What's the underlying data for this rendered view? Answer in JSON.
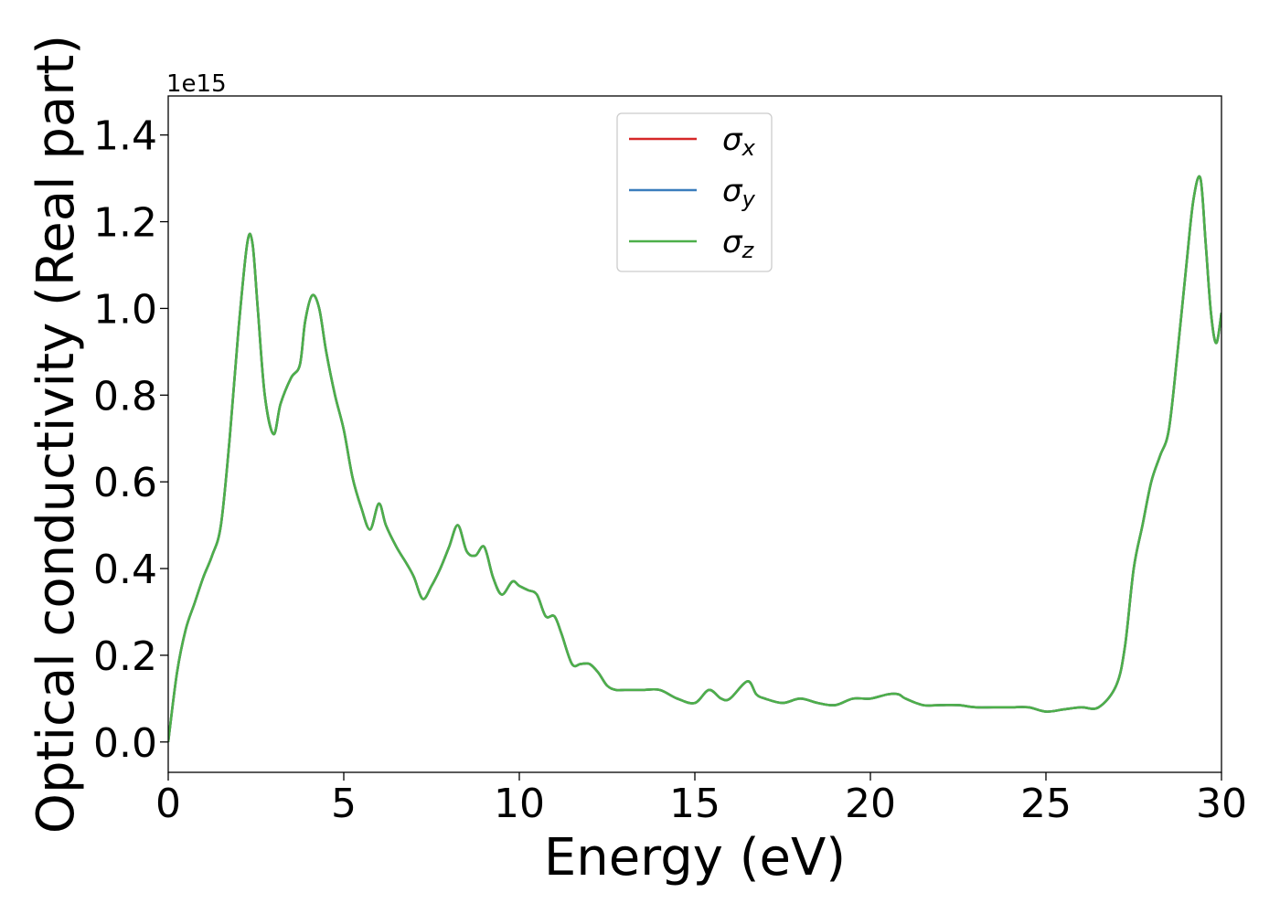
{
  "chart_data": {
    "type": "line",
    "xlabel": "Energy (eV)",
    "ylabel": "Optical conductivity (Real part)",
    "y_offset_label": "1e15",
    "xlim": [
      0,
      30
    ],
    "ylim": [
      -0.07,
      1.49
    ],
    "x_ticks": [
      0,
      5,
      10,
      15,
      20,
      25,
      30
    ],
    "x_tick_labels": [
      "0",
      "5",
      "10",
      "15",
      "20",
      "25",
      "30"
    ],
    "y_ticks": [
      0.0,
      0.2,
      0.4,
      0.6,
      0.8,
      1.0,
      1.2,
      1.4
    ],
    "y_tick_labels": [
      "0.0",
      "0.2",
      "0.4",
      "0.6",
      "0.8",
      "1.0",
      "1.2",
      "1.4"
    ],
    "grid": false,
    "legend_position": "top-center",
    "x": [
      0,
      0.25,
      0.5,
      0.75,
      1,
      1.25,
      1.5,
      1.75,
      2,
      2.25,
      2.4,
      2.55,
      2.75,
      3,
      3.2,
      3.5,
      3.75,
      3.9,
      4.1,
      4.3,
      4.5,
      4.75,
      5,
      5.25,
      5.5,
      5.75,
      6,
      6.2,
      6.5,
      6.8,
      7,
      7.25,
      7.5,
      7.75,
      8,
      8.25,
      8.5,
      8.75,
      9,
      9.25,
      9.5,
      9.8,
      10,
      10.25,
      10.5,
      10.75,
      11,
      11.2,
      11.5,
      11.75,
      12,
      12.25,
      12.5,
      12.75,
      13,
      13.5,
      14,
      14.5,
      15,
      15.4,
      15.75,
      16,
      16.5,
      16.75,
      17,
      17.5,
      18,
      18.5,
      19,
      19.5,
      20,
      20.5,
      20.8,
      21,
      21.5,
      22,
      22.5,
      23,
      23.5,
      24,
      24.5,
      25,
      25.5,
      26,
      26.5,
      27,
      27.25,
      27.5,
      27.75,
      28,
      28.25,
      28.5,
      28.75,
      29,
      29.2,
      29.4,
      29.55,
      29.7,
      29.85,
      30
    ],
    "series": [
      {
        "name": "σx",
        "color": "#d62728",
        "values": [
          0.0,
          0.16,
          0.26,
          0.32,
          0.38,
          0.43,
          0.5,
          0.7,
          0.95,
          1.15,
          1.15,
          1.0,
          0.8,
          0.71,
          0.78,
          0.84,
          0.87,
          0.97,
          1.03,
          1.0,
          0.9,
          0.8,
          0.72,
          0.61,
          0.54,
          0.49,
          0.55,
          0.5,
          0.45,
          0.41,
          0.38,
          0.33,
          0.36,
          0.4,
          0.45,
          0.5,
          0.44,
          0.43,
          0.45,
          0.38,
          0.34,
          0.37,
          0.36,
          0.35,
          0.34,
          0.29,
          0.29,
          0.25,
          0.18,
          0.18,
          0.18,
          0.16,
          0.13,
          0.12,
          0.12,
          0.12,
          0.12,
          0.1,
          0.09,
          0.12,
          0.1,
          0.1,
          0.14,
          0.11,
          0.1,
          0.09,
          0.1,
          0.09,
          0.085,
          0.1,
          0.1,
          0.11,
          0.11,
          0.1,
          0.085,
          0.085,
          0.085,
          0.08,
          0.08,
          0.08,
          0.08,
          0.07,
          0.075,
          0.08,
          0.08,
          0.13,
          0.22,
          0.4,
          0.5,
          0.6,
          0.66,
          0.72,
          0.9,
          1.1,
          1.25,
          1.3,
          1.15,
          0.99,
          0.92,
          0.99
        ]
      },
      {
        "name": "σy",
        "color": "#3a7dbd",
        "values": [
          0.0,
          0.16,
          0.26,
          0.32,
          0.38,
          0.43,
          0.5,
          0.7,
          0.95,
          1.15,
          1.15,
          1.0,
          0.8,
          0.71,
          0.78,
          0.84,
          0.87,
          0.97,
          1.03,
          1.0,
          0.9,
          0.8,
          0.72,
          0.61,
          0.54,
          0.49,
          0.55,
          0.5,
          0.45,
          0.41,
          0.38,
          0.33,
          0.36,
          0.4,
          0.45,
          0.5,
          0.44,
          0.43,
          0.45,
          0.38,
          0.34,
          0.37,
          0.36,
          0.35,
          0.34,
          0.29,
          0.29,
          0.25,
          0.18,
          0.18,
          0.18,
          0.16,
          0.13,
          0.12,
          0.12,
          0.12,
          0.12,
          0.1,
          0.09,
          0.12,
          0.1,
          0.1,
          0.14,
          0.11,
          0.1,
          0.09,
          0.1,
          0.09,
          0.085,
          0.1,
          0.1,
          0.11,
          0.11,
          0.1,
          0.085,
          0.085,
          0.085,
          0.08,
          0.08,
          0.08,
          0.08,
          0.07,
          0.075,
          0.08,
          0.08,
          0.13,
          0.22,
          0.4,
          0.5,
          0.6,
          0.66,
          0.72,
          0.9,
          1.1,
          1.25,
          1.3,
          1.15,
          0.99,
          0.92,
          0.99
        ]
      },
      {
        "name": "σz",
        "color": "#4daf4a",
        "values": [
          0.0,
          0.16,
          0.26,
          0.32,
          0.38,
          0.43,
          0.5,
          0.7,
          0.95,
          1.15,
          1.15,
          1.0,
          0.8,
          0.71,
          0.78,
          0.84,
          0.87,
          0.97,
          1.03,
          1.0,
          0.9,
          0.8,
          0.72,
          0.61,
          0.54,
          0.49,
          0.55,
          0.5,
          0.45,
          0.41,
          0.38,
          0.33,
          0.36,
          0.4,
          0.45,
          0.5,
          0.44,
          0.43,
          0.45,
          0.38,
          0.34,
          0.37,
          0.36,
          0.35,
          0.34,
          0.29,
          0.29,
          0.25,
          0.18,
          0.18,
          0.18,
          0.16,
          0.13,
          0.12,
          0.12,
          0.12,
          0.12,
          0.1,
          0.09,
          0.12,
          0.1,
          0.1,
          0.14,
          0.11,
          0.1,
          0.09,
          0.1,
          0.09,
          0.085,
          0.1,
          0.1,
          0.11,
          0.11,
          0.1,
          0.085,
          0.085,
          0.085,
          0.08,
          0.08,
          0.08,
          0.08,
          0.07,
          0.075,
          0.08,
          0.08,
          0.13,
          0.22,
          0.4,
          0.5,
          0.6,
          0.66,
          0.72,
          0.9,
          1.1,
          1.25,
          1.3,
          1.15,
          0.99,
          0.92,
          0.99
        ]
      }
    ],
    "legend": [
      {
        "symbol": "σ",
        "subscript": "x",
        "color": "#d62728"
      },
      {
        "symbol": "σ",
        "subscript": "y",
        "color": "#3a7dbd"
      },
      {
        "symbol": "σ",
        "subscript": "z",
        "color": "#4daf4a"
      }
    ]
  }
}
